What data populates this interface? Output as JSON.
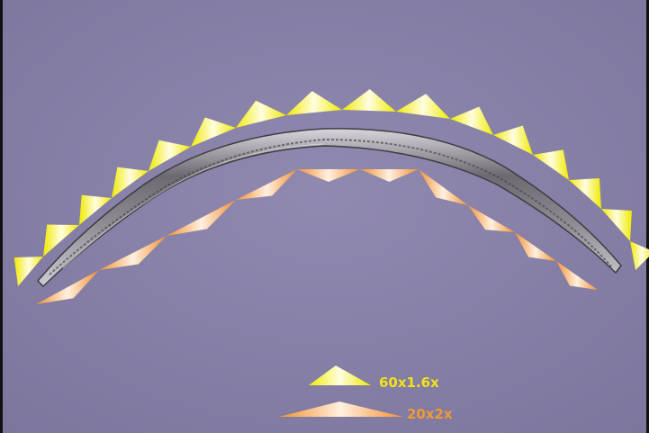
{
  "colors": {
    "background": "#877fa6",
    "large_marker": "#f4f000",
    "large_marker_label": "#f2e11a",
    "small_marker": "#f59a3a",
    "small_marker_label": "#f19a33",
    "worm_body": "#5a5a5e"
  },
  "legend": {
    "large_marker_label": "60x1.6x",
    "small_marker_label": "20x2x"
  }
}
